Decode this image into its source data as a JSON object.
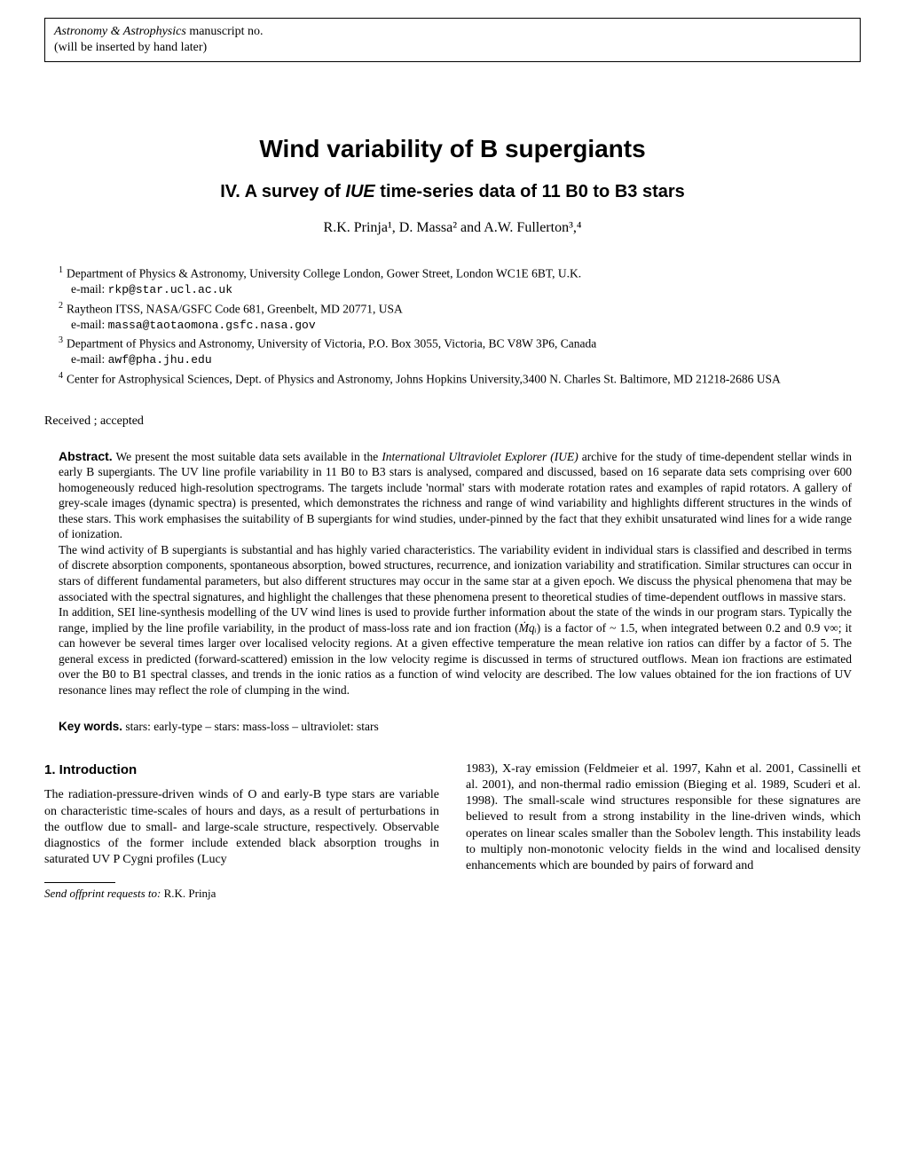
{
  "header": {
    "journal": "Astronomy & Astrophysics",
    "manuscript_suffix": " manuscript no.",
    "insert_note": "(will be inserted by hand later)"
  },
  "title": "Wind variability of B supergiants",
  "subtitle_prefix": "IV. A survey of ",
  "subtitle_italic": "IUE",
  "subtitle_suffix": " time-series data of 11 B0 to B3 stars",
  "authors_text": "R.K. Prinja¹, D. Massa² and A.W. Fullerton³,⁴",
  "affiliations": [
    {
      "num": "1",
      "text": "Department of Physics & Astronomy, University College London, Gower Street, London WC1E 6BT, U.K.",
      "email_prefix": "e-mail: ",
      "email": "rkp@star.ucl.ac.uk"
    },
    {
      "num": "2",
      "text": "Raytheon ITSS, NASA/GSFC Code 681, Greenbelt, MD 20771, USA",
      "email_prefix": "e-mail: ",
      "email": "massa@taotaomona.gsfc.nasa.gov"
    },
    {
      "num": "3",
      "text": "Department of Physics and Astronomy, University of Victoria, P.O. Box 3055, Victoria, BC V8W 3P6, Canada",
      "email_prefix": "e-mail: ",
      "email": "awf@pha.jhu.edu"
    },
    {
      "num": "4",
      "text": "Center for Astrophysical Sciences, Dept. of Physics and Astronomy, Johns Hopkins University,3400 N. Charles St. Baltimore, MD 21218-2686 USA",
      "email_prefix": "",
      "email": ""
    }
  ],
  "received": "Received ; accepted",
  "abstract_label": "Abstract.",
  "abstract_p1a": " We present the most suitable data sets available in the ",
  "abstract_p1_italic": "International Ultraviolet Explorer (IUE)",
  "abstract_p1b": " archive for the study of time-dependent stellar winds in early B supergiants. The UV line profile variability in 11 B0 to B3 stars is analysed, compared and discussed, based on 16 separate data sets comprising over 600 homogeneously reduced high-resolution spectrograms. The targets include 'normal' stars with moderate rotation rates and examples of rapid rotators. A gallery of grey-scale images (dynamic spectra) is presented, which demonstrates the richness and range of wind variability and highlights different structures in the winds of these stars. This work emphasises the suitability of B supergiants for wind studies, under-pinned by the fact that they exhibit unsaturated wind lines for a wide range of ionization.",
  "abstract_p2": "The wind activity of B supergiants is substantial and has highly varied characteristics. The variability evident in individual stars is classified and described in terms of discrete absorption components, spontaneous absorption, bowed structures, recurrence, and ionization variability and stratification. Similar structures can occur in stars of different fundamental parameters, but also different structures may occur in the same star at a given epoch. We discuss the physical phenomena that may be associated with the spectral signatures, and highlight the challenges that these phenomena present to theoretical studies of time-dependent outflows in massive stars.",
  "abstract_p3a": "In addition, SEI line-synthesis modelling of the UV wind lines is used to provide further information about the state of the winds in our program stars. Typically the range, implied by the line profile variability, in the product of mass-loss rate and ion fraction (",
  "abstract_p3_math": "Ṁqᵢ",
  "abstract_p3b": ") is a factor of ~ 1.5, when integrated between 0.2 and 0.9 v∞; it can however be several times larger over localised velocity regions. At a given effective temperature the mean relative ion ratios can differ by a factor of 5. The general excess in predicted (forward-scattered) emission in the low velocity regime is discussed in terms of structured outflows. Mean ion fractions are estimated over the B0 to B1 spectral classes, and trends in the ionic ratios as a function of wind velocity are described. The low values obtained for the ion fractions of UV resonance lines may reflect the role of clumping in the wind.",
  "keywords_label": "Key words.",
  "keywords_text": " stars: early-type – stars: mass-loss – ultraviolet: stars",
  "section1_heading": "1. Introduction",
  "col1_text": "The radiation-pressure-driven winds of O and early-B type stars are variable on characteristic time-scales of hours and days, as a result of perturbations in the outflow due to small- and large-scale structure, respectively. Observable diagnostics of the former include extended black absorption troughs in saturated UV P Cygni profiles (Lucy",
  "col2_text": "1983), X-ray emission (Feldmeier et al. 1997, Kahn et al. 2001, Cassinelli et al. 2001), and non-thermal radio emission (Bieging et al. 1989, Scuderi et al. 1998). The small-scale wind structures responsible for these signatures are believed to result from a strong instability in the line-driven winds, which operates on linear scales smaller than the Sobolev length. This instability leads to multiply non-monotonic velocity fields in the wind and localised density enhancements which are bounded by pairs of forward and",
  "footnote_label": "Send offprint requests to:",
  "footnote_text": " R.K. Prinja"
}
